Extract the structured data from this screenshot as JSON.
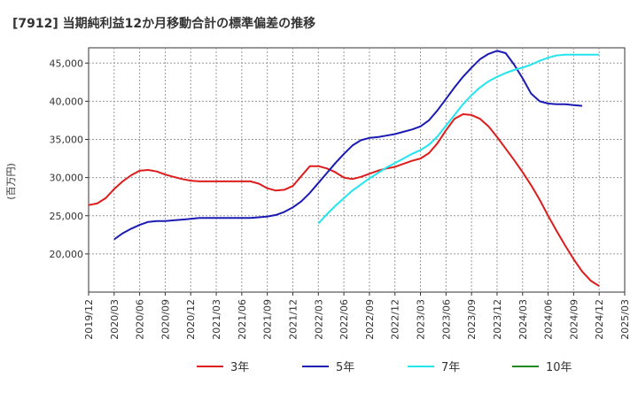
{
  "chart_data": {
    "type": "line",
    "title": "[7912]  当期純利益12か月移動合計の標準偏差の推移",
    "ylabel": "(百万円)",
    "xlabel": "",
    "ylim": [
      15000,
      47000
    ],
    "y_ticks": [
      20000,
      25000,
      30000,
      35000,
      40000,
      45000
    ],
    "y_tick_labels": [
      "20,000",
      "25,000",
      "30,000",
      "35,000",
      "40,000",
      "45,000"
    ],
    "x_start": "2019-12",
    "x_ticks": [
      "2019/12",
      "2020/03",
      "2020/06",
      "2020/09",
      "2020/12",
      "2021/03",
      "2021/06",
      "2021/09",
      "2021/12",
      "2022/03",
      "2022/06",
      "2022/09",
      "2022/12",
      "2023/03",
      "2023/06",
      "2023/09",
      "2023/12",
      "2024/03",
      "2024/06",
      "2024/09",
      "2024/12",
      "2025/03"
    ],
    "legend_position": "bottom",
    "grid": true,
    "series": [
      {
        "name": "3年",
        "color": "#dd1c1c",
        "start": "2019-12",
        "values": [
          26400,
          26600,
          27300,
          28500,
          29500,
          30300,
          30900,
          31000,
          30800,
          30400,
          30100,
          29800,
          29600,
          29500,
          29500,
          29500,
          29500,
          29500,
          29500,
          29500,
          29200,
          28600,
          28300,
          28400,
          28900,
          30200,
          31500,
          31500,
          31200,
          30700,
          30000,
          29800,
          30100,
          30500,
          30900,
          31200,
          31400,
          31800,
          32200,
          32500,
          33200,
          34500,
          36200,
          37700,
          38300,
          38200,
          37700,
          36700,
          35300,
          33800,
          32300,
          30700,
          29000,
          27100,
          25000,
          23000,
          21100,
          19300,
          17700,
          16500,
          15800
        ]
      },
      {
        "name": "5年",
        "color": "#1b1bb3",
        "start": "2020-03",
        "values": [
          21900,
          22700,
          23300,
          23800,
          24200,
          24300,
          24300,
          24400,
          24500,
          24600,
          24700,
          24700,
          24700,
          24700,
          24700,
          24700,
          24700,
          24800,
          24900,
          25100,
          25500,
          26100,
          26900,
          28000,
          29300,
          30600,
          31900,
          33100,
          34200,
          34900,
          35200,
          35300,
          35500,
          35700,
          36000,
          36300,
          36700,
          37500,
          38800,
          40300,
          41800,
          43200,
          44400,
          45500,
          46200,
          46600,
          46300,
          44800,
          43000,
          41000,
          40000,
          39700,
          39600,
          39600,
          39500,
          39400
        ]
      },
      {
        "name": "7年",
        "color": "#22e5ee",
        "start": "2022-03",
        "values": [
          24000,
          25200,
          26300,
          27300,
          28300,
          29100,
          29900,
          30600,
          31300,
          31900,
          32500,
          33100,
          33600,
          34300,
          35400,
          36800,
          38200,
          39600,
          40800,
          41800,
          42600,
          43200,
          43700,
          44100,
          44400,
          44800,
          45300,
          45700,
          46000,
          46100,
          46100,
          46100,
          46100,
          46100
        ]
      },
      {
        "name": "10年",
        "color": "#1f8a1f",
        "start": "2019-12",
        "values": []
      }
    ]
  }
}
